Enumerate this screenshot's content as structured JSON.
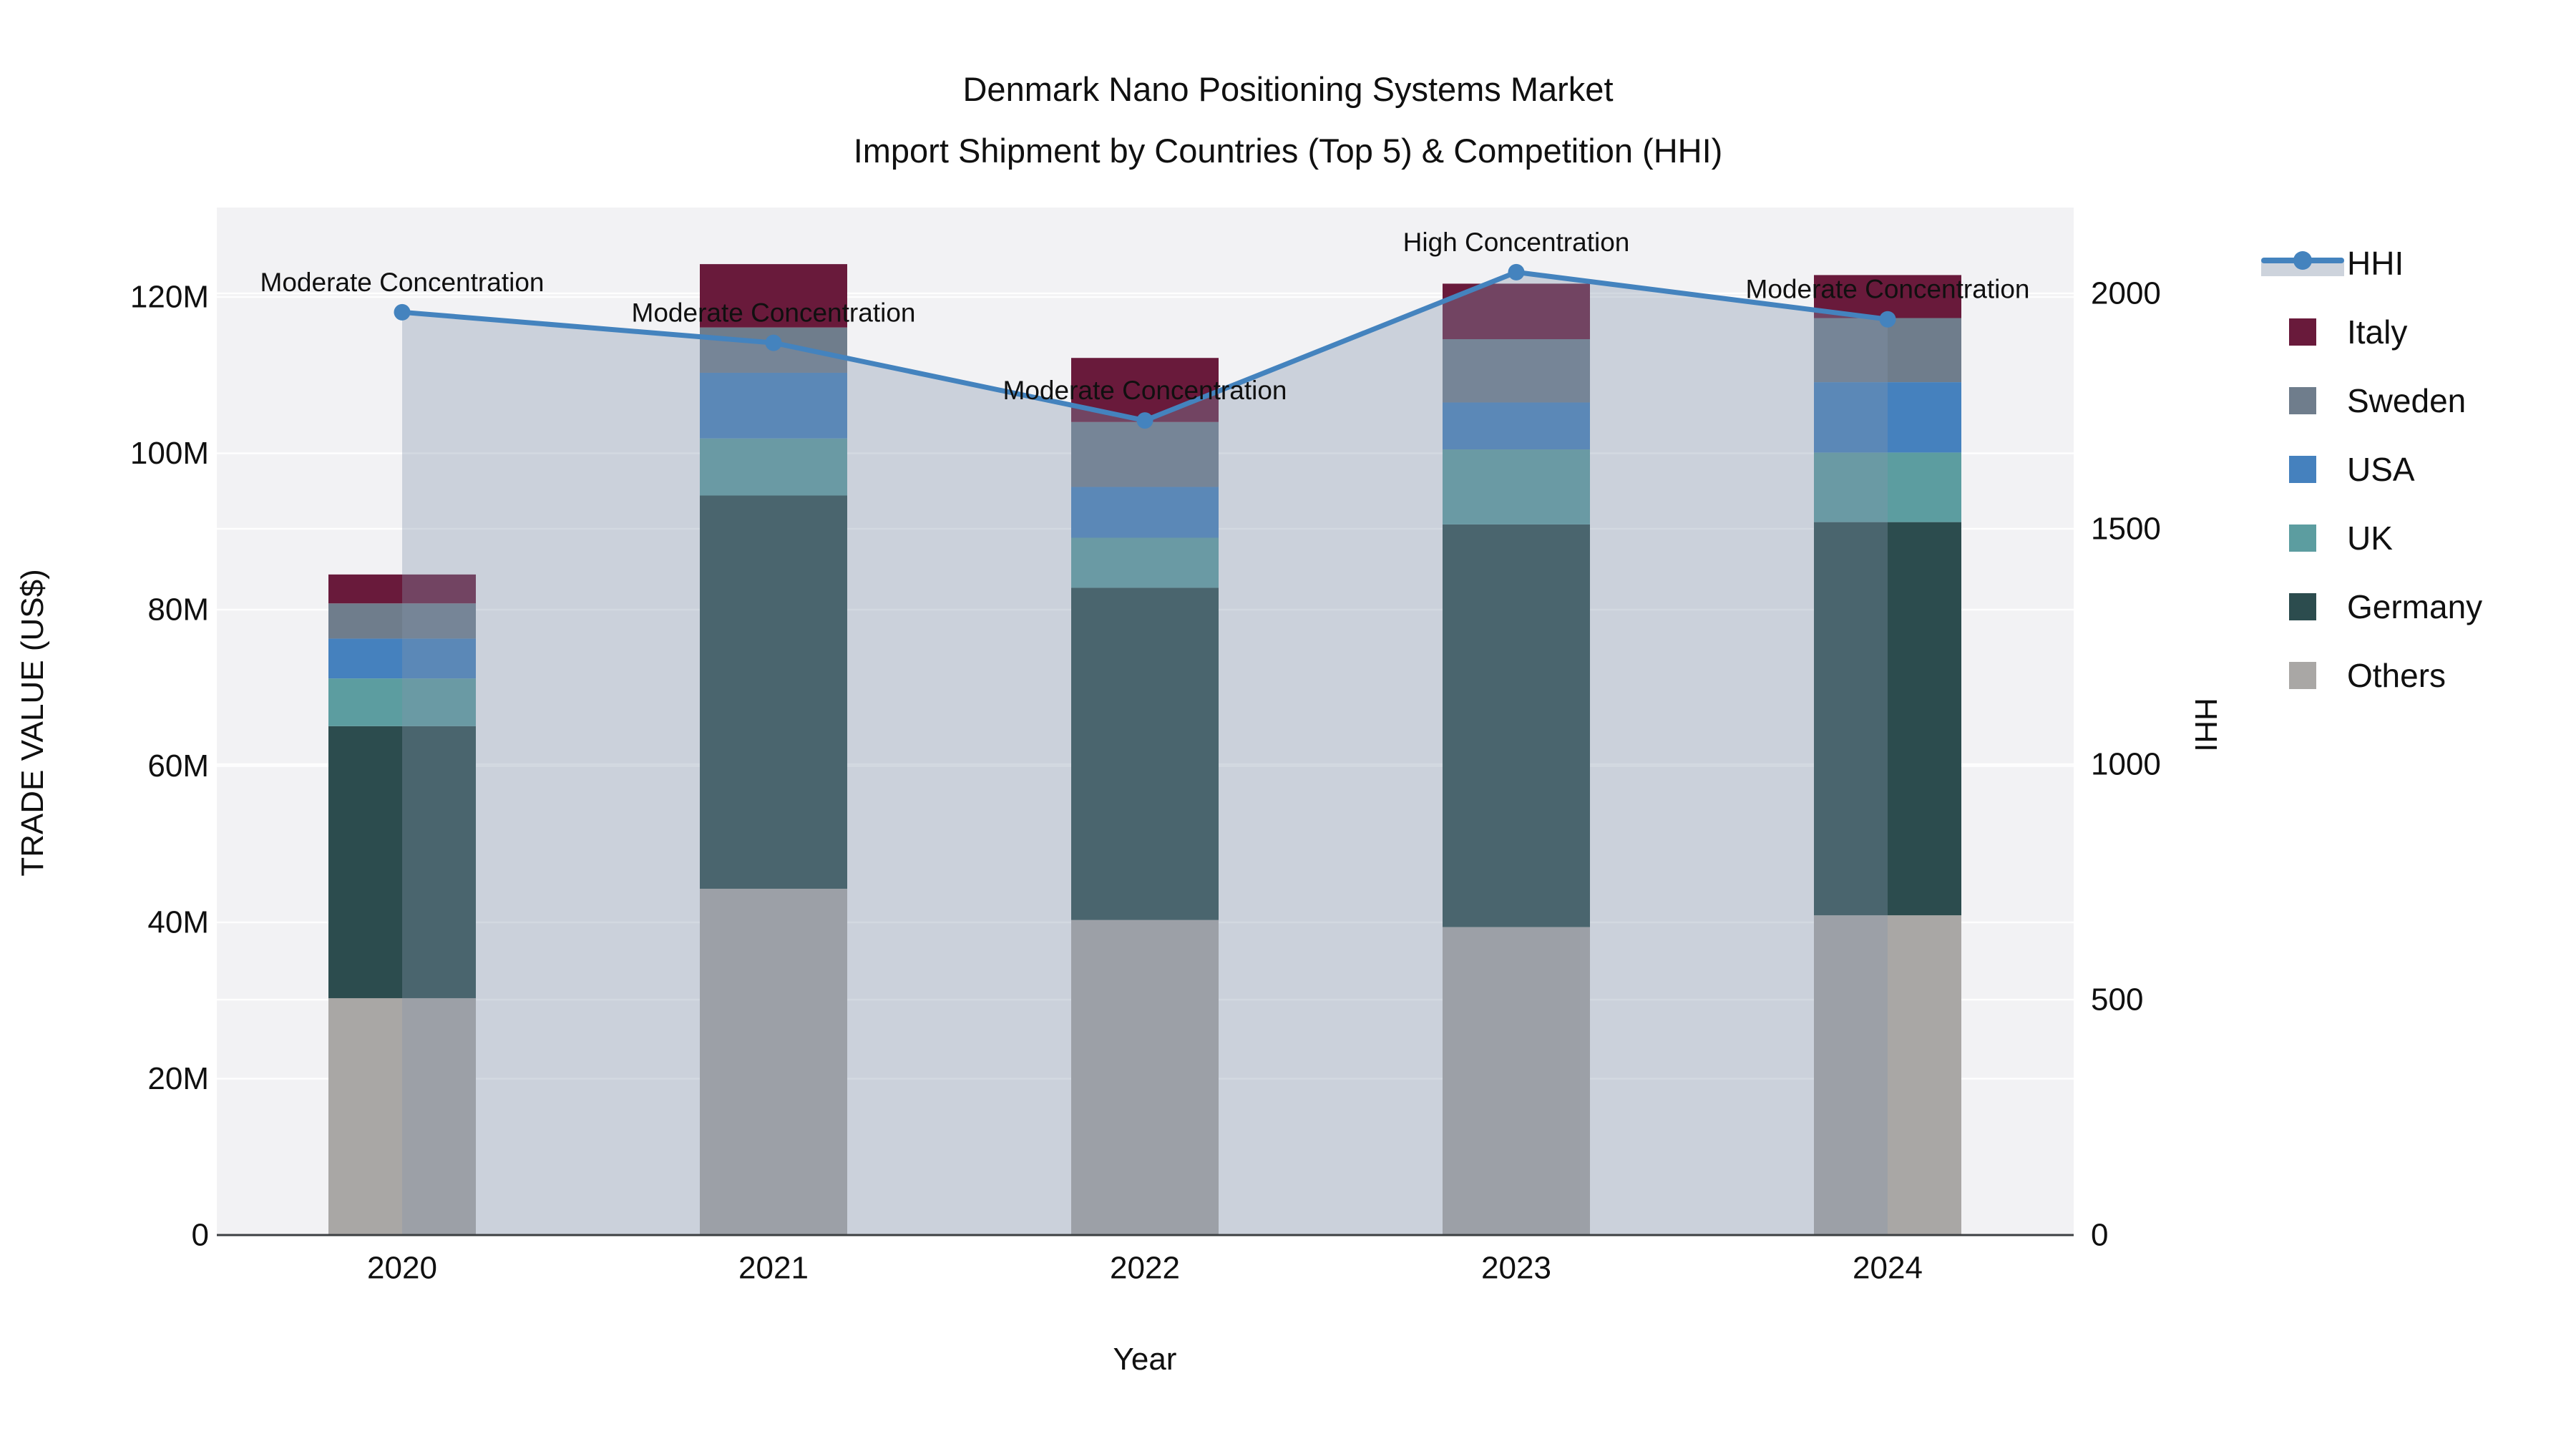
{
  "title": {
    "line1": "Denmark Nano Positioning Systems Market",
    "line2": "Import Shipment by Countries (Top 5) & Competition (HHI)"
  },
  "chart_data": {
    "type": "bar+line",
    "title": "Denmark Nano Positioning Systems Market — Import Shipment by Countries (Top 5) & Competition (HHI)",
    "xlabel": "Year",
    "ylabel_left": "TRADE VALUE (US$)",
    "ylabel_right": "HHI",
    "categories": [
      "2020",
      "2021",
      "2022",
      "2023",
      "2024"
    ],
    "stack_order_bottom_to_top": [
      "Others",
      "Germany",
      "UK",
      "USA",
      "Sweden",
      "Italy"
    ],
    "series": [
      {
        "name": "Others",
        "color": "#A9A7A5",
        "values": [
          30.3,
          44.3,
          40.3,
          39.4,
          40.9
        ]
      },
      {
        "name": "Germany",
        "color": "#2C4C4E",
        "values": [
          34.8,
          50.3,
          42.5,
          51.5,
          50.3
        ]
      },
      {
        "name": "UK",
        "color": "#5C9DA0",
        "values": [
          6.1,
          7.3,
          6.4,
          9.6,
          8.9
        ]
      },
      {
        "name": "USA",
        "color": "#4581BE",
        "values": [
          5.1,
          8.4,
          6.5,
          6.0,
          9.0
        ]
      },
      {
        "name": "Sweden",
        "color": "#6F7D8C",
        "values": [
          4.5,
          5.8,
          8.3,
          8.1,
          8.2
        ]
      },
      {
        "name": "Italy",
        "color": "#691A3B",
        "values": [
          3.7,
          8.1,
          8.2,
          7.1,
          5.5
        ]
      }
    ],
    "bar_totals": [
      84.5,
      124.2,
      112.2,
      121.7,
      122.8
    ],
    "bar_value_unit": "M US$",
    "line_series": {
      "name": "HHI",
      "color": "#4483BE",
      "area_color": "rgba(133,148,172,0.35)",
      "values": [
        1960,
        1895,
        1730,
        2045,
        1945
      ]
    },
    "annotations": [
      {
        "category": "2020",
        "text": "Moderate Concentration"
      },
      {
        "category": "2021",
        "text": "Moderate Concentration"
      },
      {
        "category": "2022",
        "text": "Moderate Concentration"
      },
      {
        "category": "2023",
        "text": "High Concentration"
      },
      {
        "category": "2024",
        "text": "Moderate Concentration"
      }
    ],
    "y_left_ticks": [
      "0",
      "20M",
      "40M",
      "60M",
      "80M",
      "100M",
      "120M"
    ],
    "y_left_tick_values": [
      0,
      20,
      40,
      60,
      80,
      100,
      120
    ],
    "y_left_range": [
      0,
      131
    ],
    "y_right_ticks": [
      "0",
      "500",
      "1000",
      "1500",
      "2000"
    ],
    "y_right_tick_values": [
      0,
      500,
      1000,
      1500,
      2000
    ],
    "y_right_range": [
      0,
      2175
    ],
    "legend_order": [
      "HHI",
      "Italy",
      "Sweden",
      "USA",
      "UK",
      "Germany",
      "Others"
    ],
    "legend_position": "right",
    "grid": true,
    "plot_bg": "#F2F2F4",
    "grid_color": "rgba(255,255,255,0.9)",
    "axis_line_color": "#3C3F42",
    "tick_font_size": 44,
    "annotation_font_size": 37
  }
}
